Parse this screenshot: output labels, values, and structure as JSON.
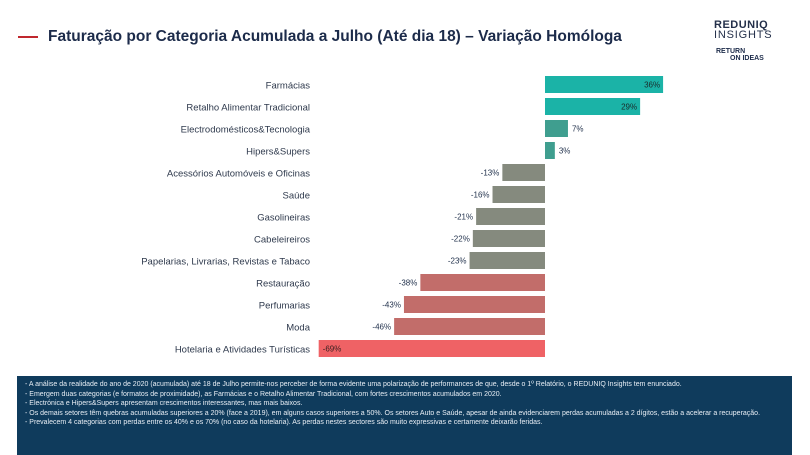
{
  "header": {
    "title": "Faturação por Categoria Acumulada a Julho (Até dia 18) – Variação Homóloga",
    "logo_brand": "REDUNIQ",
    "logo_sub": "INSIGHTS",
    "logo2_line1": "RETURN",
    "logo2_line2": "ON IDEAS",
    "accent_color": "#c0282e"
  },
  "chart_data": {
    "type": "bar",
    "orientation": "horizontal",
    "categories": [
      "Farmácias",
      "Retalho Alimentar Tradicional",
      "Electrodomésticos&Tecnologia",
      "Hipers&Supers",
      "Acessórios Automóveis e Oficinas",
      "Saúde",
      "Gasolineiras",
      "Cabeleireiros",
      "Papelarias, Livrarias, Revistas e Tabaco",
      "Restauração",
      "Perfumarias",
      "Moda",
      "Hotelaria e Atividades Turísticas"
    ],
    "values": [
      36,
      29,
      7,
      3,
      -13,
      -16,
      -21,
      -22,
      -23,
      -38,
      -43,
      -46,
      -69
    ],
    "labels": [
      "36%",
      "29%",
      "7%",
      "3%",
      "-13%",
      "-16%",
      "-21%",
      "-22%",
      "-23%",
      "-38%",
      "-43%",
      "-46%",
      "-69%"
    ],
    "colors": [
      "#1bb3a7",
      "#1bb3a7",
      "#3f9e8f",
      "#3f9e8f",
      "#858a7e",
      "#858a7e",
      "#858a7e",
      "#858a7e",
      "#858a7e",
      "#c26d6a",
      "#c26d6a",
      "#c26d6a",
      "#ef6265"
    ],
    "xlim": [
      -69,
      36
    ],
    "unit": "%"
  },
  "notes": [
    "- A análise da realidade do ano de 2020 (acumulada) até 18 de Julho permite-nos perceber de forma evidente uma polarização de performances de que, desde o 1º Relatório, o REDUNIQ Insights tem enunciado.",
    "- Emergem duas categorias (e formatos de proximidade), as Farmácias e o Retalho Alimentar Tradicional, com fortes crescimentos acumulados em 2020.",
    "- Electrónica e Hipers&Supers apresentam crescimentos interessantes, mas mais baixos.",
    "- Os demais setores têm quebras acumuladas superiores a 20% (face a 2019), em alguns casos superiores a 50%. Os setores Auto e Saúde, apesar de ainda evidenciarem perdas acumuladas a 2 dígitos, estão a acelerar a recuperação.",
    "- Prevalecem 4 categorias com perdas entre os 40% e os 70% (no caso da hotelaria). As perdas nestes sectores são muito expressivas e certamente deixarão feridas."
  ]
}
